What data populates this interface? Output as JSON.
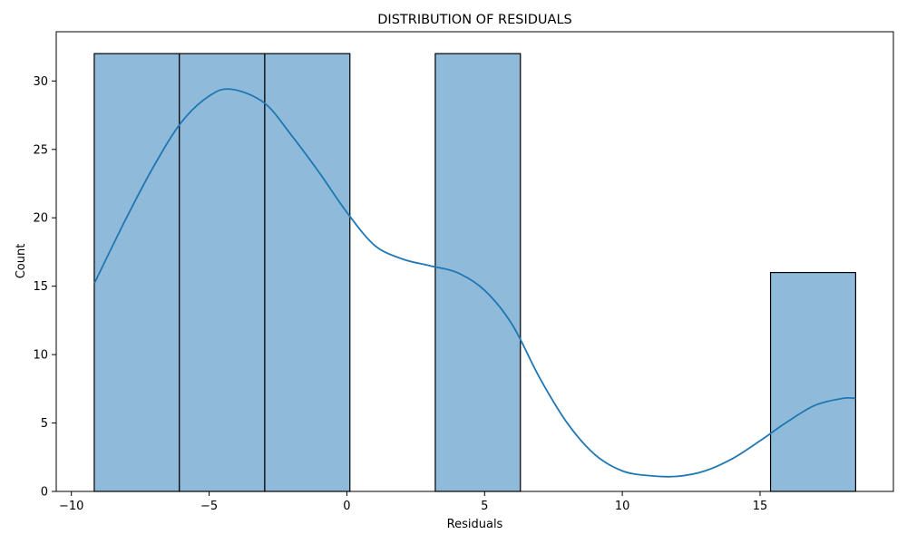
{
  "chart_data": {
    "type": "bar",
    "subtype": "histogram-with-kde",
    "title": "DISTRIBUTION OF RESIDUALS",
    "xlabel": "Residuals",
    "ylabel": "Count",
    "xlim": [
      -10.55,
      19.84
    ],
    "ylim": [
      0,
      33.6
    ],
    "x_ticks": [
      -10,
      -5,
      0,
      5,
      10,
      15
    ],
    "x_tick_labels": [
      "−10",
      "−5",
      "0",
      "5",
      "10",
      "15"
    ],
    "y_ticks": [
      0,
      5,
      10,
      15,
      20,
      25,
      30
    ],
    "y_tick_labels": [
      "0",
      "5",
      "10",
      "15",
      "20",
      "25",
      "30"
    ],
    "grid": false,
    "legend": "none",
    "bins": [
      {
        "x0": -9.17,
        "x1": -6.08,
        "count": 32
      },
      {
        "x0": -6.08,
        "x1": -2.98,
        "count": 32
      },
      {
        "x0": -2.98,
        "x1": 0.11,
        "count": 32
      },
      {
        "x0": 0.11,
        "x1": 3.21,
        "count": 0
      },
      {
        "x0": 3.21,
        "x1": 6.3,
        "count": 32
      },
      {
        "x0": 6.3,
        "x1": 9.4,
        "count": 0
      },
      {
        "x0": 9.4,
        "x1": 12.49,
        "count": 0
      },
      {
        "x0": 12.49,
        "x1": 15.38,
        "count": 0
      },
      {
        "x0": 15.38,
        "x1": 18.47,
        "count": 16
      }
    ],
    "kde": {
      "x": [
        -9.17,
        -8,
        -7,
        -6,
        -5,
        -4.2,
        -3,
        -2,
        -1,
        0,
        1,
        2,
        3,
        4,
        5,
        6,
        7,
        8,
        9,
        10,
        11,
        12,
        13,
        14,
        15,
        16,
        17,
        18,
        18.47
      ],
      "y": [
        15.2,
        20.0,
        23.8,
        27.0,
        28.9,
        29.4,
        28.4,
        26.0,
        23.3,
        20.4,
        18.0,
        17.0,
        16.5,
        16.0,
        14.7,
        12.2,
        8.3,
        5.0,
        2.7,
        1.5,
        1.15,
        1.1,
        1.5,
        2.4,
        3.7,
        5.1,
        6.3,
        6.8,
        6.8
      ]
    },
    "colors": {
      "bar_fill": "#8fbad9",
      "bar_edge": "#000000",
      "kde_line": "#1f77b4"
    }
  }
}
